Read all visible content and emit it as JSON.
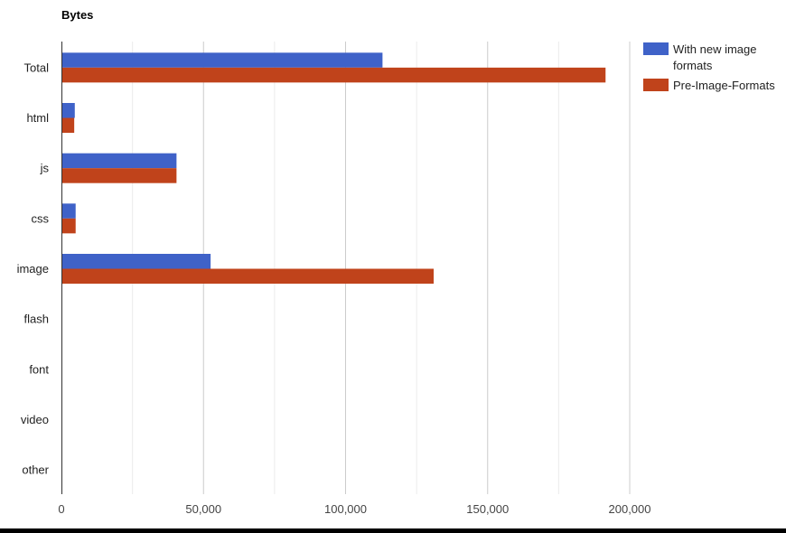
{
  "chart_data": {
    "type": "bar",
    "orientation": "horizontal",
    "title": "Bytes",
    "xlabel": "",
    "ylabel": "",
    "categories": [
      "Total",
      "html",
      "js",
      "css",
      "image",
      "flash",
      "font",
      "video",
      "other"
    ],
    "series": [
      {
        "name": "With new image formats",
        "color": "#3f62c8",
        "values": [
          113000,
          4700,
          40500,
          5000,
          52500,
          0,
          0,
          0,
          0
        ]
      },
      {
        "name": "Pre-Image-Formats",
        "color": "#c0431b",
        "values": [
          191500,
          4500,
          40500,
          5000,
          131000,
          0,
          0,
          0,
          0
        ]
      }
    ],
    "xlim": [
      0,
      250000
    ],
    "xticks": [
      0,
      50000,
      100000,
      150000,
      200000
    ],
    "xtick_labels": [
      "0",
      "50,000",
      "100,000",
      "150,000",
      "200,000"
    ],
    "grid": true,
    "legend_position": "top-right"
  }
}
